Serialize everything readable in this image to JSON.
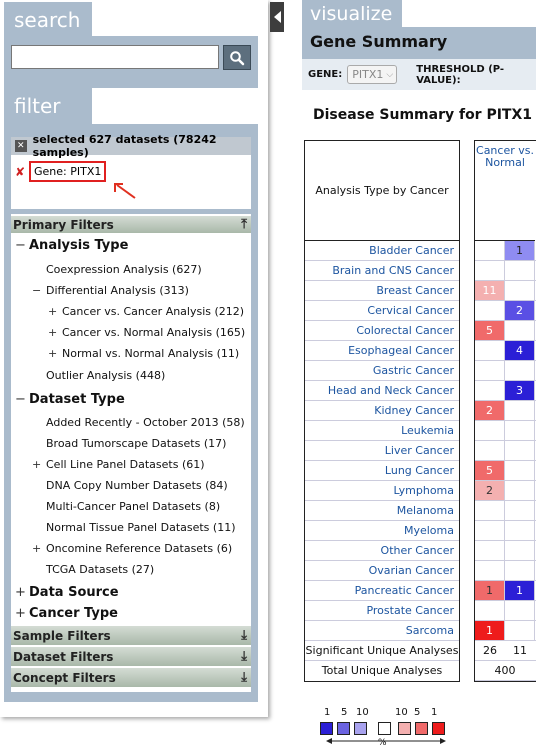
{
  "left": {
    "search_tab": "search",
    "search_placeholder": "",
    "filter_tab": "filter",
    "selected_summary": "selected 627 datasets (78242 samples)",
    "gene_chip": "Gene: PITX1",
    "primary_filters": "Primary Filters",
    "tree": [
      {
        "label": "Analysis Type",
        "level": 0,
        "expander": "−"
      },
      {
        "label": "Coexpression Analysis (627)",
        "level": 1,
        "expander": ""
      },
      {
        "label": "Differential Analysis (313)",
        "level": 1,
        "expander": "−"
      },
      {
        "label": "Cancer vs. Cancer Analysis (212)",
        "level": 2,
        "expander": "+"
      },
      {
        "label": "Cancer vs. Normal Analysis (165)",
        "level": 2,
        "expander": "+"
      },
      {
        "label": "Normal vs. Normal Analysis (11)",
        "level": 2,
        "expander": "+"
      },
      {
        "label": "Outlier Analysis (448)",
        "level": 1,
        "expander": ""
      },
      {
        "label": "Dataset Type",
        "level": 0,
        "expander": "−"
      },
      {
        "label": "Added Recently - October 2013 (58)",
        "level": 1,
        "expander": ""
      },
      {
        "label": "Broad Tumorscape Datasets (17)",
        "level": 1,
        "expander": ""
      },
      {
        "label": "Cell Line Panel Datasets (61)",
        "level": 1,
        "expander": "+"
      },
      {
        "label": "DNA Copy Number Datasets (84)",
        "level": 1,
        "expander": ""
      },
      {
        "label": "Multi-Cancer Panel Datasets (8)",
        "level": 1,
        "expander": ""
      },
      {
        "label": "Normal Tissue Panel Datasets (11)",
        "level": 1,
        "expander": ""
      },
      {
        "label": "Oncomine Reference Datasets (6)",
        "level": 1,
        "expander": "+"
      },
      {
        "label": "TCGA Datasets (27)",
        "level": 1,
        "expander": ""
      },
      {
        "label": "Data Source",
        "level": 0,
        "expander": "+"
      },
      {
        "label": "Cancer Type",
        "level": 0,
        "expander": "+"
      }
    ],
    "lower_sections": [
      "Sample Filters",
      "Dataset Filters",
      "Concept Filters"
    ]
  },
  "right": {
    "visualize_tab": "visualize",
    "gene_summary": "Gene Summary",
    "gene_label": "GENE:",
    "gene_value": "PITX1",
    "threshold_label": "THRESHOLD (P-VALUE):",
    "summary_title": "Disease Summary for PITX1",
    "row_header": "Analysis Type by Cancer",
    "column_header": "Cancer vs. Normal",
    "cancers": [
      {
        "name": "Bladder Cancer",
        "up": "",
        "down": "1"
      },
      {
        "name": "Brain and CNS Cancer",
        "up": "",
        "down": ""
      },
      {
        "name": "Breast Cancer",
        "up": "11",
        "down": ""
      },
      {
        "name": "Cervical Cancer",
        "up": "",
        "down": "2"
      },
      {
        "name": "Colorectal Cancer",
        "up": "5",
        "down": ""
      },
      {
        "name": "Esophageal Cancer",
        "up": "",
        "down": "4"
      },
      {
        "name": "Gastric Cancer",
        "up": "",
        "down": ""
      },
      {
        "name": "Head and Neck Cancer",
        "up": "",
        "down": "3"
      },
      {
        "name": "Kidney Cancer",
        "up": "2",
        "down": ""
      },
      {
        "name": "Leukemia",
        "up": "",
        "down": ""
      },
      {
        "name": "Liver Cancer",
        "up": "",
        "down": ""
      },
      {
        "name": "Lung Cancer",
        "up": "5",
        "down": ""
      },
      {
        "name": "Lymphoma",
        "up": "2",
        "down": ""
      },
      {
        "name": "Melanoma",
        "up": "",
        "down": ""
      },
      {
        "name": "Myeloma",
        "up": "",
        "down": ""
      },
      {
        "name": "Other Cancer",
        "up": "",
        "down": ""
      },
      {
        "name": "Ovarian Cancer",
        "up": "",
        "down": ""
      },
      {
        "name": "Pancreatic Cancer",
        "up": "1",
        "down": "1"
      },
      {
        "name": "Prostate Cancer",
        "up": "",
        "down": ""
      },
      {
        "name": "Sarcoma",
        "up": "1",
        "down": ""
      }
    ],
    "significant_label": "Significant Unique Analyses",
    "significant_up": "26",
    "significant_down": "11",
    "total_label": "Total Unique Analyses",
    "total_value": "400",
    "legend": {
      "down_ticks": [
        "1",
        "5",
        "10"
      ],
      "up_ticks": [
        "10",
        "5",
        "1"
      ],
      "percent_label": "%",
      "down_colors": [
        "#2b1fd6",
        "#6b63e0",
        "#a8a2ee"
      ],
      "neutral_color": "#ffffff",
      "up_colors": [
        "#f4b0b0",
        "#f06a6a",
        "#ee1c1c"
      ]
    }
  }
}
